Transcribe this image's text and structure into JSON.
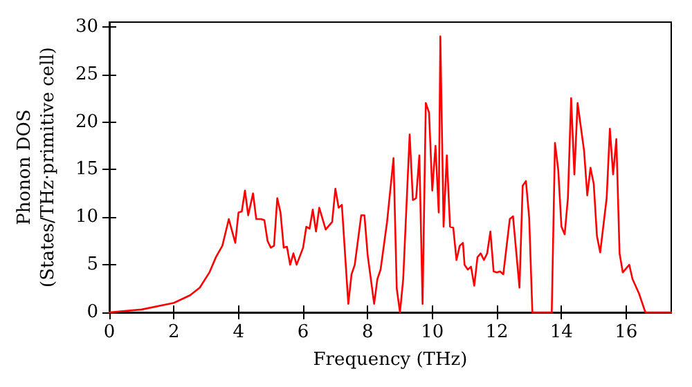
{
  "chart_data": {
    "type": "line",
    "xlabel": "Frequency (THz)",
    "ylabel": "Phonon DOS\n(States/THz·primitive cell)",
    "xlim": [
      0,
      17.4
    ],
    "xticks": [
      0,
      2,
      4,
      6,
      8,
      10,
      12,
      14,
      16
    ],
    "ylim": [
      0,
      30.5
    ],
    "yticks": [
      0,
      5,
      10,
      15,
      20,
      25,
      30
    ],
    "grid": false,
    "marker": "none",
    "line_style": "solid",
    "x": [
      0,
      1,
      2,
      2.5,
      2.8,
      3.1,
      3.3,
      3.5,
      3.7,
      3.9,
      4.0,
      4.1,
      4.2,
      4.3,
      4.45,
      4.55,
      4.7,
      4.8,
      4.9,
      5.0,
      5.1,
      5.2,
      5.3,
      5.4,
      5.5,
      5.6,
      5.7,
      5.8,
      6.0,
      6.1,
      6.2,
      6.3,
      6.4,
      6.5,
      6.7,
      6.9,
      7.0,
      7.1,
      7.2,
      7.4,
      7.5,
      7.6,
      7.8,
      7.9,
      8.0,
      8.2,
      8.3,
      8.4,
      8.6,
      8.8,
      8.9,
      9.0,
      9.1,
      9.3,
      9.4,
      9.5,
      9.6,
      9.7,
      9.8,
      9.9,
      10.0,
      10.1,
      10.2,
      10.25,
      10.35,
      10.45,
      10.55,
      10.65,
      10.75,
      10.85,
      10.95,
      11.0,
      11.1,
      11.2,
      11.3,
      11.4,
      11.5,
      11.6,
      11.7,
      11.8,
      11.9,
      12.0,
      12.1,
      12.2,
      12.4,
      12.5,
      12.7,
      12.8,
      12.9,
      13.0,
      13.1,
      13.7,
      13.8,
      13.9,
      14.0,
      14.1,
      14.2,
      14.3,
      14.4,
      14.5,
      14.6,
      14.7,
      14.8,
      14.9,
      15.0,
      15.1,
      15.2,
      15.4,
      15.5,
      15.6,
      15.7,
      15.8,
      15.9,
      16.1,
      16.2,
      16.4,
      16.6,
      17.4
    ],
    "series": [
      {
        "color": "#ff0000",
        "values": [
          0,
          0.3,
          1.0,
          1.8,
          2.6,
          4.2,
          5.8,
          7.0,
          9.8,
          7.3,
          10.5,
          10.6,
          12.8,
          10.2,
          12.5,
          9.8,
          9.8,
          9.7,
          7.5,
          6.8,
          7.0,
          12.0,
          10.5,
          6.8,
          6.9,
          5.0,
          6.2,
          5.0,
          6.8,
          9.0,
          8.8,
          10.8,
          8.5,
          11.0,
          8.7,
          9.5,
          13.0,
          11.0,
          11.3,
          0.9,
          4.0,
          5.0,
          10.2,
          10.2,
          6.0,
          0.9,
          3.5,
          4.5,
          9.5,
          16.2,
          2.5,
          0,
          3.5,
          18.7,
          11.8,
          12.0,
          16.5,
          0.9,
          22.0,
          21.0,
          12.8,
          17.5,
          10.5,
          29.0,
          9.0,
          16.5,
          9.0,
          8.9,
          5.5,
          7.0,
          7.3,
          5.0,
          4.5,
          4.8,
          2.8,
          5.8,
          6.2,
          5.5,
          6.2,
          8.5,
          4.3,
          4.2,
          4.3,
          4.0,
          9.8,
          10.1,
          2.6,
          13.3,
          13.8,
          10,
          0,
          0,
          17.8,
          15,
          9,
          8.2,
          12.0,
          22.5,
          14.5,
          22.0,
          19.5,
          17.0,
          12.3,
          15.2,
          13.5,
          8.0,
          6.3,
          12,
          19.3,
          14.5,
          18.2,
          6.2,
          4.2,
          5.0,
          3.5,
          2.0,
          0,
          0
        ]
      }
    ]
  }
}
